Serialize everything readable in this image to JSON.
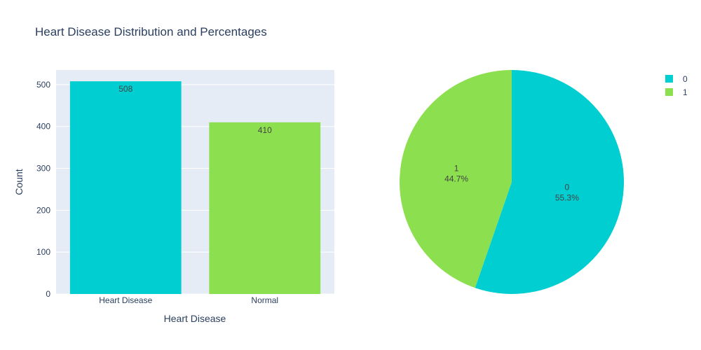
{
  "chart_data": [
    {
      "type": "bar",
      "title": "Heart Disease Distribution and Percentages",
      "categories": [
        "Heart Disease",
        "Normal"
      ],
      "values": [
        508,
        410
      ],
      "value_labels": [
        "508",
        "410"
      ],
      "colors": [
        "#00CED1",
        "#8CE04F"
      ],
      "xlabel": "Heart Disease",
      "ylabel": "Count",
      "ylim": [
        0,
        535
      ],
      "yticks": [
        0,
        100,
        200,
        300,
        400,
        500
      ],
      "ytick_labels": [
        "0",
        "100",
        "200",
        "300",
        "400",
        "500"
      ],
      "grid": true,
      "plot_bg": "#E5ECF6"
    },
    {
      "type": "pie",
      "slices": [
        {
          "label": "0",
          "value": 55.3,
          "pct_text": "55.3%",
          "color": "#00CED1"
        },
        {
          "label": "1",
          "value": 44.7,
          "pct_text": "44.7%",
          "color": "#8CE04F"
        }
      ],
      "legend": {
        "placement": "top-right",
        "items": [
          "0",
          "1"
        ]
      }
    }
  ]
}
